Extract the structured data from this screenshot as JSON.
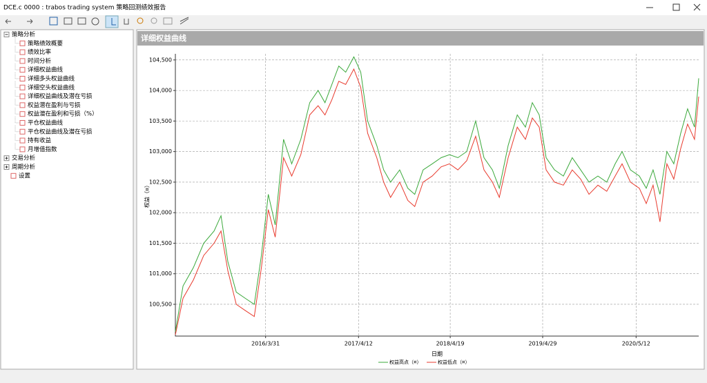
{
  "window": {
    "title": "DCE.c 0000 : trabos trading system 策略回测绩效报告"
  },
  "tree": {
    "groups": [
      {
        "label": "策略分析",
        "items": [
          "策略绩效概要",
          "绩效比率",
          "时间分析",
          "详细权益曲线",
          "详细多头权益曲线",
          "详细空头权益曲线",
          "详细权益曲线及潜在亏损",
          "权益潜在盈利与亏损",
          "权益潜在盈利和亏损（%）",
          "平仓权益曲线",
          "平仓权益曲线及潜在亏损",
          "持有收益",
          "月增值指数"
        ]
      },
      {
        "label": "交易分析"
      },
      {
        "label": "周期分析"
      }
    ],
    "settings": "设置"
  },
  "panel": {
    "title": "详细权益曲线"
  },
  "chart_data": {
    "type": "line",
    "y_label": "权益（¤）",
    "x_label": "日期",
    "x": [
      "2015/3/31",
      "2015/5/1",
      "2015/6/12",
      "2015/7/24",
      "2015/9/4",
      "2015/10/2",
      "2015/10/30",
      "2015/12/3",
      "2016/1/8",
      "2016/2/14",
      "2016/3/14",
      "2016/4/11",
      "2016/5/9",
      "2016/6/12",
      "2016/7/15",
      "2016/8/21",
      "2016/9/26",
      "2016/10/30",
      "2016/11/27",
      "2016/12/25",
      "2017/1/22",
      "2017/2/19",
      "2017/3/24",
      "2017/4/21",
      "2017/5/19",
      "2017/6/25",
      "2017/7/23",
      "2017/8/20",
      "2017/9/26",
      "2017/10/29",
      "2017/11/26",
      "2017/12/30",
      "2018/2/5",
      "2018/3/13",
      "2018/4/16",
      "2018/5/20",
      "2018/6/25",
      "2018/7/31",
      "2018/9/3",
      "2018/10/7",
      "2018/11/4",
      "2018/12/10",
      "2019/1/16",
      "2019/2/18",
      "2019/3/18",
      "2019/4/15",
      "2019/5/13",
      "2019/6/16",
      "2019/7/22",
      "2019/8/27",
      "2019/9/30",
      "2019/11/3",
      "2019/12/9",
      "2020/1/14",
      "2020/2/17",
      "2020/3/16",
      "2020/4/19",
      "2020/5/25",
      "2020/6/22",
      "2020/7/20",
      "2020/8/17",
      "2020/9/14",
      "2020/10/12",
      "2020/11/9",
      "2020/12/7",
      "2021/1/4",
      "2021/1/21"
    ],
    "series": [
      {
        "name": "权益高点（¤）",
        "color": "#3aa83a",
        "values": [
          100050,
          100800,
          101100,
          101500,
          101700,
          101950,
          101200,
          100700,
          100600,
          100500,
          101300,
          102300,
          101800,
          103200,
          102800,
          103200,
          103800,
          104000,
          103800,
          104100,
          104400,
          104300,
          104550,
          104300,
          103500,
          103100,
          102700,
          102500,
          102700,
          102400,
          102300,
          102700,
          102800,
          102900,
          102950,
          102900,
          103000,
          103500,
          102900,
          102700,
          102400,
          103100,
          103600,
          103400,
          103800,
          103600,
          102900,
          102700,
          102600,
          102900,
          102700,
          102500,
          102600,
          102500,
          102800,
          103000,
          102700,
          102600,
          102400,
          102700,
          102300,
          103000,
          102800,
          103300,
          103700,
          103400,
          104200
        ]
      },
      {
        "name": "权益低点（¤）",
        "color": "#e8392c",
        "values": [
          100000,
          100600,
          100900,
          101300,
          101500,
          101700,
          101050,
          100500,
          100400,
          100300,
          101100,
          102050,
          101600,
          102900,
          102600,
          102950,
          103600,
          103750,
          103600,
          103850,
          104150,
          104100,
          104350,
          104050,
          103300,
          102900,
          102500,
          102250,
          102500,
          102200,
          102100,
          102500,
          102600,
          102750,
          102800,
          102700,
          102850,
          103250,
          102700,
          102500,
          102250,
          102900,
          103400,
          103200,
          103550,
          103400,
          102700,
          102500,
          102450,
          102700,
          102550,
          102300,
          102450,
          102350,
          102600,
          102800,
          102500,
          102400,
          102150,
          102450,
          101850,
          102800,
          102550,
          103050,
          103450,
          103200,
          103900
        ]
      }
    ],
    "xlim": [
      "2015/3/31",
      "2021/1/21"
    ],
    "xticks": [
      "2016/3/31",
      "2017/4/12",
      "2018/4/19",
      "2019/4/29",
      "2020/5/12"
    ],
    "ylim": [
      99980,
      104600
    ],
    "yticks": [
      {
        "value": 100500,
        "label": "100,500"
      },
      {
        "value": 101000,
        "label": "101,000"
      },
      {
        "value": 101500,
        "label": "101,500"
      },
      {
        "value": 102000,
        "label": "102,000"
      },
      {
        "value": 102500,
        "label": "102,500"
      },
      {
        "value": 103000,
        "label": "103,000"
      },
      {
        "value": 103500,
        "label": "103,500"
      },
      {
        "value": 104000,
        "label": "104,000"
      },
      {
        "value": 104500,
        "label": "104,500"
      }
    ],
    "grid": true
  }
}
